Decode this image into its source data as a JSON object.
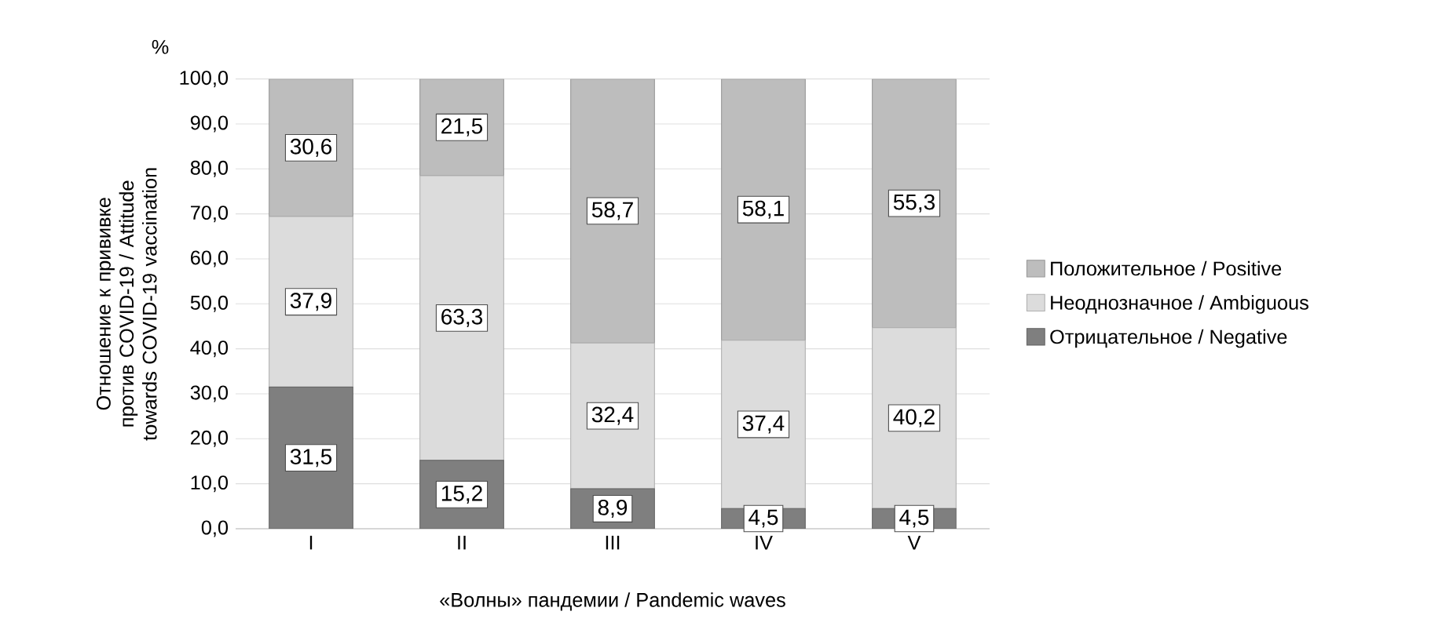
{
  "chart_data": {
    "type": "bar",
    "stacked": true,
    "xlabel": "«Волны» пандемии / Pandemic waves",
    "ylabel": "Отношение к прививке против COVID-19 / Attitude towards COVID-19 vaccination",
    "annotations": [
      "%"
    ],
    "categories": [
      "I",
      "II",
      "III",
      "IV",
      "V"
    ],
    "series": [
      {
        "name": "Отрицательное / Negative",
        "color": "#7f7f7f",
        "values": [
          31.5,
          15.2,
          8.9,
          4.5,
          4.5
        ],
        "value_labels": [
          "31,5",
          "15,2",
          "8,9",
          "4,5",
          "4,5"
        ]
      },
      {
        "name": "Неоднозначное / Ambiguous",
        "color": "#dcdcdc",
        "values": [
          37.9,
          63.3,
          32.4,
          37.4,
          40.2
        ],
        "value_labels": [
          "37,9",
          "63,3",
          "32,4",
          "37,4",
          "40,2"
        ]
      },
      {
        "name": "Положительное / Positive",
        "color": "#bdbdbd",
        "values": [
          30.6,
          21.5,
          58.7,
          58.1,
          55.3
        ],
        "value_labels": [
          "30,6",
          "21,5",
          "58,7",
          "58,1",
          "55,3"
        ]
      }
    ],
    "ylim": [
      0,
      100
    ],
    "yticks": [
      {
        "value": 0,
        "label": "0,0"
      },
      {
        "value": 10,
        "label": "10,0"
      },
      {
        "value": 20,
        "label": "20,0"
      },
      {
        "value": 30,
        "label": "30,0"
      },
      {
        "value": 40,
        "label": "40,0"
      },
      {
        "value": 50,
        "label": "50,0"
      },
      {
        "value": 60,
        "label": "60,0"
      },
      {
        "value": 70,
        "label": "70,0"
      },
      {
        "value": 80,
        "label": "80,0"
      },
      {
        "value": 90,
        "label": "90,0"
      },
      {
        "value": 100,
        "label": "100,0"
      }
    ],
    "grid": "y",
    "legend": "right"
  }
}
